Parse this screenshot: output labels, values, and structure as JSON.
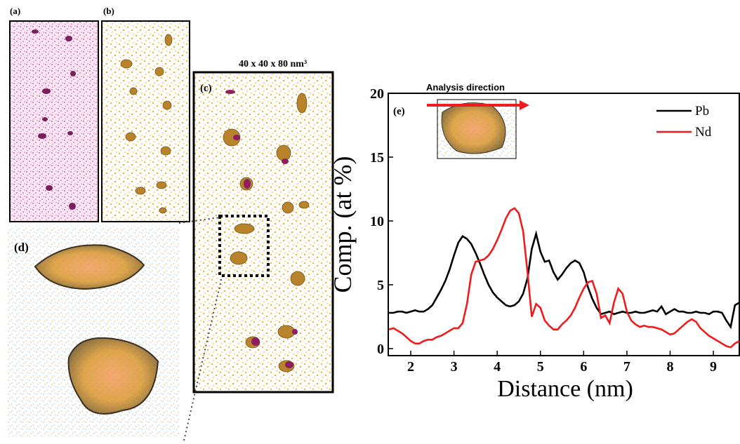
{
  "panels": {
    "a": "(a)",
    "b": "(b)",
    "c": "(c)",
    "d": "(d)",
    "c_size": "40 x 40 x 80 nm³"
  },
  "chart_data": {
    "type": "line",
    "panel_label": "(e)",
    "annotation": "Analysis direction",
    "xlabel": "Distance (nm)",
    "ylabel": "Comp. (at %)",
    "xlim": [
      1.48,
      9.6
    ],
    "ylim": [
      -0.55,
      20
    ],
    "xticks": [
      2,
      3,
      4,
      5,
      6,
      7,
      8,
      9
    ],
    "yticks": [
      0,
      5,
      10,
      15,
      20
    ],
    "grid": false,
    "legend": "upper right",
    "x": [
      1.5,
      1.6,
      1.7,
      1.8,
      1.9,
      2.0,
      2.1,
      2.2,
      2.3,
      2.4,
      2.5,
      2.6,
      2.7,
      2.8,
      2.9,
      3.0,
      3.1,
      3.2,
      3.3,
      3.4,
      3.5,
      3.6,
      3.7,
      3.8,
      3.9,
      4.0,
      4.1,
      4.2,
      4.3,
      4.4,
      4.5,
      4.6,
      4.7,
      4.8,
      4.9,
      5.0,
      5.1,
      5.2,
      5.3,
      5.4,
      5.5,
      5.6,
      5.7,
      5.8,
      5.9,
      6.0,
      6.1,
      6.2,
      6.3,
      6.4,
      6.5,
      6.6,
      6.7,
      6.8,
      6.9,
      7.0,
      7.1,
      7.2,
      7.3,
      7.4,
      7.5,
      7.6,
      7.7,
      7.8,
      7.9,
      8.0,
      8.1,
      8.2,
      8.3,
      8.4,
      8.5,
      8.6,
      8.7,
      8.8,
      8.9,
      9.0,
      9.1,
      9.2,
      9.3,
      9.4,
      9.5,
      9.6
    ],
    "series": [
      {
        "name": "Pb",
        "color": "#000000",
        "values": [
          2.8,
          2.8,
          2.9,
          2.9,
          2.8,
          2.9,
          3.0,
          2.9,
          2.9,
          3.1,
          3.4,
          4.0,
          4.6,
          5.3,
          6.2,
          7.3,
          8.3,
          8.8,
          8.6,
          8.2,
          7.5,
          6.7,
          5.8,
          5.0,
          4.4,
          4.0,
          3.7,
          3.4,
          3.3,
          3.4,
          3.7,
          4.3,
          5.5,
          7.8,
          9.0,
          7.6,
          6.8,
          6.9,
          6.0,
          5.4,
          5.8,
          6.3,
          6.7,
          6.9,
          6.7,
          6.0,
          4.8,
          3.9,
          3.2,
          2.7,
          2.8,
          2.9,
          2.7,
          2.8,
          2.9,
          2.8,
          2.8,
          2.9,
          2.8,
          2.8,
          2.9,
          3.0,
          2.9,
          3.3,
          2.7,
          2.9,
          3.1,
          2.9,
          2.9,
          2.8,
          2.8,
          2.9,
          2.8,
          2.8,
          2.7,
          2.9,
          2.9,
          2.8,
          2.2,
          1.7,
          3.4,
          3.6
        ]
      },
      {
        "name": "Nd",
        "color": "#ee1c1c",
        "values": [
          1.5,
          1.6,
          1.4,
          1.2,
          0.9,
          0.6,
          0.4,
          0.4,
          0.6,
          0.7,
          0.7,
          0.9,
          1.0,
          1.2,
          1.4,
          1.6,
          1.6,
          2.0,
          3.5,
          5.8,
          6.8,
          6.9,
          7.0,
          7.3,
          7.8,
          8.5,
          9.3,
          10.2,
          10.8,
          11.0,
          10.6,
          9.2,
          6.0,
          2.5,
          3.5,
          3.2,
          2.2,
          1.8,
          1.5,
          1.5,
          1.9,
          2.2,
          2.6,
          3.2,
          4.0,
          4.7,
          5.2,
          5.3,
          4.3,
          2.4,
          2.6,
          2.0,
          3.6,
          4.7,
          4.3,
          2.9,
          2.2,
          1.9,
          1.7,
          1.8,
          1.7,
          1.7,
          1.6,
          1.5,
          1.3,
          1.1,
          1.2,
          1.5,
          1.8,
          2.1,
          2.3,
          2.1,
          1.6,
          1.3,
          1.0,
          0.8,
          0.6,
          0.4,
          0.2,
          0.1,
          0.4,
          0.6
        ]
      }
    ]
  }
}
